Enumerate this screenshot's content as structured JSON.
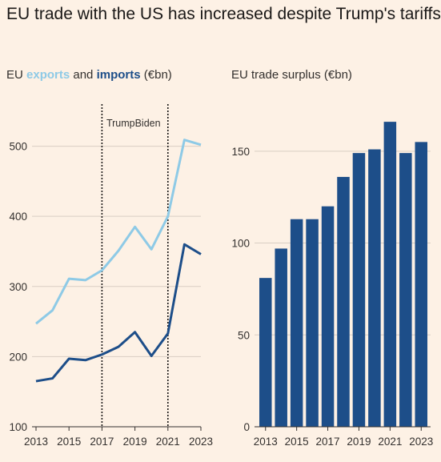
{
  "title": "EU trade with the US has increased despite Trump's tariffs",
  "left_chart": {
    "subtitle_prefix": "EU ",
    "exports_word": "exports",
    "and_word": " and ",
    "imports_word": "imports",
    "subtitle_suffix": " (€bn)",
    "annotation_trump": "Trump",
    "annotation_biden": "Biden"
  },
  "right_chart": {
    "subtitle": "EU trade surplus (€bn)"
  },
  "colors": {
    "background": "#fdf1e5",
    "exports": "#8ecae6",
    "imports": "#1d4e89",
    "bars": "#1d4e89",
    "grid": "#d9cec3",
    "axis": "#33302e"
  },
  "chart_data": [
    {
      "type": "line",
      "title": "EU exports and imports (€bn)",
      "x": [
        2013,
        2014,
        2015,
        2016,
        2017,
        2018,
        2019,
        2020,
        2021,
        2022,
        2023
      ],
      "x_ticks": [
        "2013",
        "2015",
        "2017",
        "2019",
        "2021",
        "2023"
      ],
      "xlim": [
        2013,
        2023
      ],
      "ylim": [
        100,
        560
      ],
      "y_ticks": [
        "100",
        "200",
        "300",
        "400",
        "500"
      ],
      "series": [
        {
          "name": "exports",
          "values": [
            247,
            266,
            311,
            309,
            323,
            351,
            385,
            353,
            400,
            509,
            502
          ]
        },
        {
          "name": "imports",
          "values": [
            165,
            169,
            197,
            195,
            203,
            214,
            235,
            201,
            233,
            360,
            346
          ]
        }
      ],
      "vlines": [
        2017,
        2021
      ],
      "grid": true
    },
    {
      "type": "bar",
      "title": "EU trade surplus (€bn)",
      "categories": [
        "2013",
        "2014",
        "2015",
        "2016",
        "2017",
        "2018",
        "2019",
        "2020",
        "2021",
        "2022",
        "2023"
      ],
      "x_ticks": [
        "2013",
        "2015",
        "2017",
        "2019",
        "2021",
        "2023"
      ],
      "values": [
        81,
        97,
        113,
        113,
        120,
        136,
        149,
        151,
        166,
        149,
        155
      ],
      "ylim": [
        0,
        180
      ],
      "y_ticks": [
        "0",
        "50",
        "100",
        "150"
      ],
      "grid": true
    }
  ]
}
